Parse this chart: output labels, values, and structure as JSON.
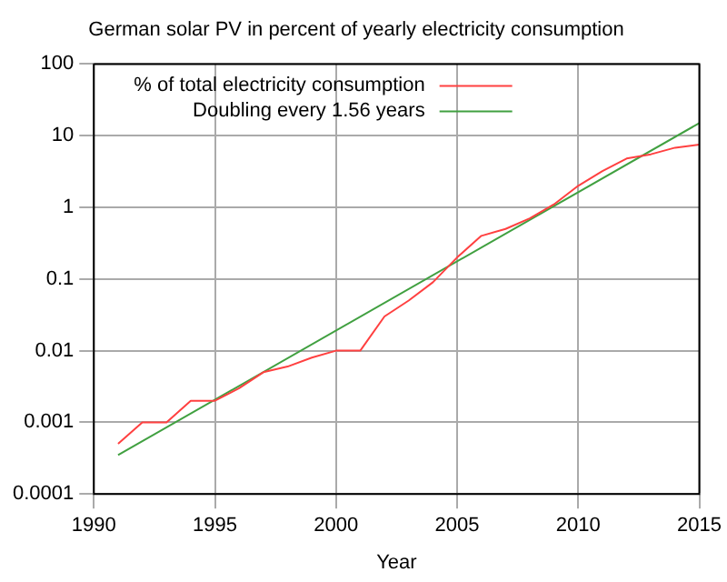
{
  "chart_data": {
    "type": "line",
    "title": "German solar PV in percent of yearly electricity consumption",
    "xlabel": "Year",
    "xlim": [
      1990,
      2015
    ],
    "xticks": [
      1990,
      1995,
      2000,
      2005,
      2010,
      2015
    ],
    "ylim": [
      0.0001,
      100
    ],
    "yticks": [
      0.0001,
      0.001,
      0.01,
      0.1,
      1,
      10,
      100
    ],
    "log": "y",
    "grid": true,
    "legend": "top left",
    "marker": "none",
    "series": [
      {
        "name": "% of total electricity consumption",
        "color": "#ff4040",
        "x": [
          1991,
          1992,
          1993,
          1994,
          1995,
          1996,
          1997,
          1998,
          1999,
          2000,
          2001,
          2002,
          2003,
          2004,
          2005,
          2006,
          2007,
          2008,
          2009,
          2010,
          2011,
          2012,
          2013,
          2014,
          2015
        ],
        "values": [
          0.0005,
          0.001,
          0.001,
          0.002,
          0.002,
          0.003,
          0.005,
          0.006,
          0.008,
          0.01,
          0.01,
          0.03,
          0.05,
          0.09,
          0.2,
          0.4,
          0.5,
          0.7,
          1.1,
          2,
          3.2,
          4.8,
          5.5,
          6.8,
          7.5
        ]
      },
      {
        "name": "Doubling every 1.56 years",
        "color": "#40a040",
        "x": [
          1991,
          2015
        ],
        "values": [
          0.00035,
          15
        ]
      }
    ]
  }
}
